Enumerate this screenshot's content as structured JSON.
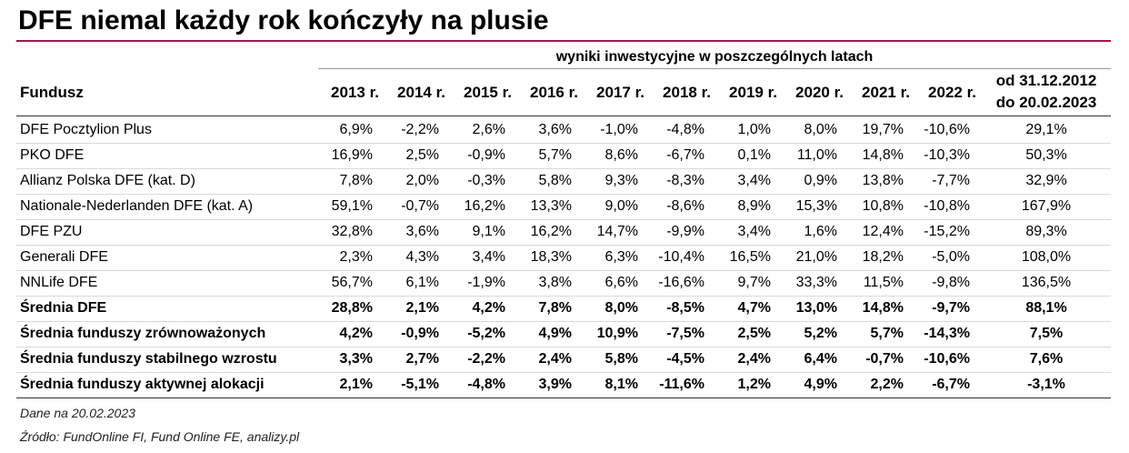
{
  "title": "DFE niemal każdy rok kończyły na plusie",
  "table": {
    "group_header": "wyniki inwestycyjne w poszczególnych latach",
    "columns": [
      "Fundusz",
      "2013 r.",
      "2014 r.",
      "2015 r.",
      "2016 r.",
      "2017 r.",
      "2018 r.",
      "2019 r.",
      "2020 r.",
      "2021 r.",
      "2022 r.",
      [
        "od 31.12.2012",
        "do 20.02.2023"
      ]
    ],
    "rows": [
      [
        "DFE Pocztylion Plus",
        "6,9%",
        "-2,2%",
        "2,6%",
        "3,6%",
        "-1,0%",
        "-4,8%",
        "1,0%",
        "8,0%",
        "19,7%",
        "-10,6%",
        "29,1%"
      ],
      [
        "PKO DFE",
        "16,9%",
        "2,5%",
        "-0,9%",
        "5,7%",
        "8,6%",
        "-6,7%",
        "0,1%",
        "11,0%",
        "14,8%",
        "-10,3%",
        "50,3%"
      ],
      [
        "Allianz Polska DFE (kat. D)",
        "7,8%",
        "2,0%",
        "-0,3%",
        "5,8%",
        "9,3%",
        "-8,3%",
        "3,4%",
        "0,9%",
        "13,8%",
        "-7,7%",
        "32,9%"
      ],
      [
        "Nationale-Nederlanden DFE (kat. A)",
        "59,1%",
        "-0,7%",
        "16,2%",
        "13,3%",
        "9,0%",
        "-8,6%",
        "8,9%",
        "15,3%",
        "10,8%",
        "-10,8%",
        "167,9%"
      ],
      [
        "DFE PZU",
        "32,8%",
        "3,6%",
        "9,1%",
        "16,2%",
        "14,7%",
        "-9,9%",
        "3,4%",
        "1,6%",
        "12,4%",
        "-15,2%",
        "89,3%"
      ],
      [
        "Generali DFE",
        "2,3%",
        "4,3%",
        "3,4%",
        "18,3%",
        "6,3%",
        "-10,4%",
        "16,5%",
        "21,0%",
        "18,2%",
        "-5,0%",
        "108,0%"
      ],
      [
        "NNLife DFE",
        "56,7%",
        "6,1%",
        "-1,9%",
        "3,8%",
        "6,6%",
        "-16,6%",
        "9,7%",
        "33,3%",
        "11,5%",
        "-9,8%",
        "136,5%"
      ],
      [
        "Średnia DFE",
        "28,8%",
        "2,1%",
        "4,2%",
        "7,8%",
        "8,0%",
        "-8,5%",
        "4,7%",
        "13,0%",
        "14,8%",
        "-9,7%",
        "88,1%"
      ],
      [
        "Średnia funduszy zrównoważonych",
        "4,2%",
        "-0,9%",
        "-5,2%",
        "4,9%",
        "10,9%",
        "-7,5%",
        "2,5%",
        "5,2%",
        "5,7%",
        "-14,3%",
        "7,5%"
      ],
      [
        "Średnia funduszy stabilnego wzrostu",
        "3,3%",
        "2,7%",
        "-2,2%",
        "2,4%",
        "5,8%",
        "-4,5%",
        "2,4%",
        "6,4%",
        "-0,7%",
        "-10,6%",
        "7,6%"
      ],
      [
        "Średnia funduszy aktywnej alokacji",
        "2,1%",
        "-5,1%",
        "-4,8%",
        "3,9%",
        "8,1%",
        "-11,6%",
        "1,2%",
        "4,9%",
        "2,2%",
        "-6,7%",
        "-3,1%"
      ]
    ]
  },
  "notes": [
    "Dane na 20.02.2023",
    "Źródło: FundOnline FI, Fund Online FE, analizy.pl"
  ]
}
